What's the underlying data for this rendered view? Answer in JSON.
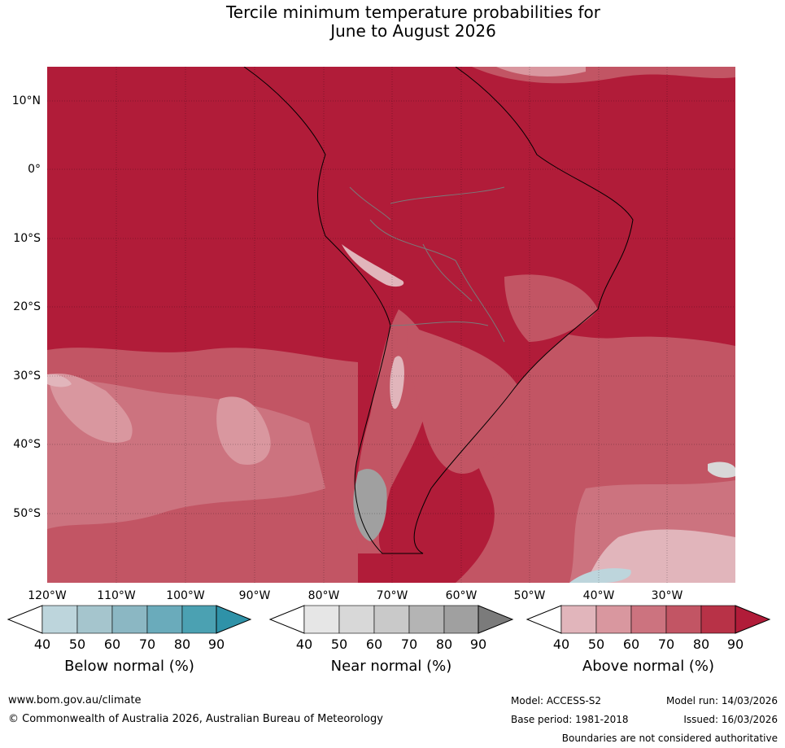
{
  "title": {
    "line1": "Tercile minimum temperature probabilities for",
    "line2": "June to August 2026"
  },
  "map": {
    "region": "South America and surrounding oceans",
    "lat_labels": [
      "10°N",
      "0°",
      "10°S",
      "20°S",
      "30°S",
      "40°S",
      "50°S"
    ],
    "lon_labels": [
      "120°W",
      "110°W",
      "100°W",
      "90°W",
      "80°W",
      "70°W",
      "60°W",
      "50°W",
      "40°W",
      "30°W"
    ],
    "ocean_color": "#b11c39",
    "land_border_color": "#000000",
    "country_border_color": "#7a7a7a"
  },
  "colorbars": [
    {
      "title": "Below normal (%)",
      "ticks": [
        "40",
        "50",
        "60",
        "70",
        "80",
        "90"
      ],
      "colors": [
        "#ffffff",
        "#bdd5dc",
        "#a5c5cd",
        "#8bb7c3",
        "#6aabbb",
        "#4ba1b2",
        "#2f92a8"
      ]
    },
    {
      "title": "Near normal (%)",
      "ticks": [
        "40",
        "50",
        "60",
        "70",
        "80",
        "90"
      ],
      "colors": [
        "#ffffff",
        "#e6e6e6",
        "#d8d8d8",
        "#c9c9c9",
        "#b4b4b4",
        "#a0a0a0",
        "#7b7b7b"
      ]
    },
    {
      "title": "Above normal (%)",
      "ticks": [
        "40",
        "50",
        "60",
        "70",
        "80",
        "90"
      ],
      "colors": [
        "#ffffff",
        "#e1b5bb",
        "#d9979f",
        "#cc737f",
        "#c25564",
        "#b83247",
        "#b11c39"
      ]
    }
  ],
  "footer": {
    "website": "www.bom.gov.au/climate",
    "copyright": "© Commonwealth of Australia 2026, Australian Bureau of Meteorology",
    "model": "Model: ACCESS-S2",
    "base_period": "Base period: 1981-2018",
    "model_run": "Model run: 14/03/2026",
    "issued": "Issued: 16/03/2026",
    "disclaimer": "Boundaries are not considered authoritative"
  }
}
